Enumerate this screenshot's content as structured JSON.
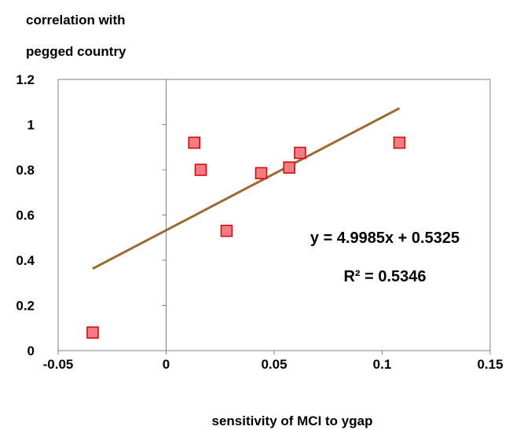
{
  "chart_data": {
    "type": "scatter",
    "ylabel_lines": [
      "correlation with",
      "pegged country"
    ],
    "xlabel": "sensitivity of MCI to ygap",
    "xlim": [
      -0.05,
      0.15
    ],
    "ylim": [
      0,
      1.2
    ],
    "x_ticks": [
      -0.05,
      0,
      0.05,
      0.1,
      0.15
    ],
    "x_tick_labels": [
      "-0.05",
      "0",
      "0.05",
      "0.1",
      "0.15"
    ],
    "y_ticks": [
      0,
      0.2,
      0.4,
      0.6,
      0.8,
      1,
      1.2
    ],
    "y_tick_labels": [
      "0",
      "0.2",
      "0.4",
      "0.6",
      "0.8",
      "1",
      "1.2"
    ],
    "grid": false,
    "points": [
      {
        "x": -0.034,
        "y": 0.08
      },
      {
        "x": 0.013,
        "y": 0.92
      },
      {
        "x": 0.016,
        "y": 0.8
      },
      {
        "x": 0.028,
        "y": 0.53
      },
      {
        "x": 0.044,
        "y": 0.785
      },
      {
        "x": 0.057,
        "y": 0.81
      },
      {
        "x": 0.062,
        "y": 0.875
      },
      {
        "x": 0.108,
        "y": 0.92
      }
    ],
    "trendline": {
      "slope": 4.9985,
      "intercept": 0.5325,
      "x_start": -0.034,
      "x_end": 0.108
    },
    "annotations": {
      "equation": "y = 4.9985x + 0.5325",
      "r_squared": "R² = 0.5346"
    },
    "colors": {
      "marker_fill": "#f47a84",
      "marker_stroke": "#d40000",
      "trendline": "#9b6a32",
      "axis": "#808080",
      "frame": "#808080"
    }
  }
}
